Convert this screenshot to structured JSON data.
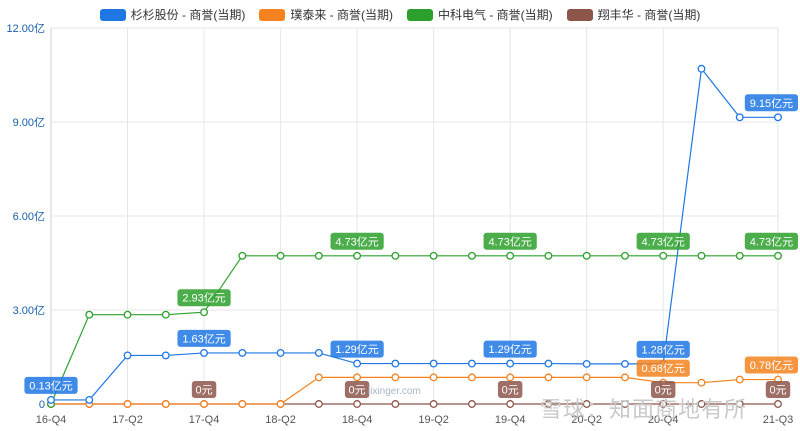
{
  "chart_data": {
    "type": "line",
    "categories": [
      "16-Q4",
      "17-Q1",
      "17-Q2",
      "17-Q3",
      "17-Q4",
      "18-Q1",
      "18-Q2",
      "18-Q3",
      "18-Q4",
      "19-Q1",
      "19-Q2",
      "19-Q3",
      "19-Q4",
      "20-Q1",
      "20-Q2",
      "20-Q3",
      "20-Q4",
      "21-Q1",
      "21-Q2",
      "21-Q3"
    ],
    "tick_labels": [
      "16-Q4",
      "17-Q2",
      "17-Q4",
      "18-Q2",
      "18-Q4",
      "19-Q2",
      "19-Q4",
      "20-Q2",
      "20-Q4",
      "21-Q3"
    ],
    "y_ticks": [
      "0",
      "3.00亿",
      "6.00亿",
      "9.00亿",
      "12.00亿"
    ],
    "ylim": [
      0,
      12
    ],
    "grid": true,
    "legend_position": "top-center",
    "series": [
      {
        "name": "杉杉股份 - 商誉(当期)",
        "color": "#1f77e4",
        "values": [
          0.13,
          0.13,
          1.55,
          1.55,
          1.63,
          1.63,
          1.63,
          1.63,
          1.29,
          1.29,
          1.29,
          1.29,
          1.29,
          1.29,
          1.28,
          1.28,
          1.28,
          10.7,
          9.15,
          9.15
        ],
        "labels": [
          {
            "i": 0,
            "text": "0.13亿元"
          },
          {
            "i": 4,
            "text": "1.63亿元"
          },
          {
            "i": 8,
            "text": "1.29亿元"
          },
          {
            "i": 12,
            "text": "1.29亿元"
          },
          {
            "i": 16,
            "text": "1.28亿元"
          },
          {
            "i": 19,
            "text": "9.15亿元"
          }
        ]
      },
      {
        "name": "璞泰来 - 商誉(当期)",
        "color": "#f5821f",
        "values": [
          0,
          0,
          0,
          0,
          0,
          0,
          0,
          0.85,
          0.85,
          0.85,
          0.85,
          0.85,
          0.85,
          0.85,
          0.85,
          0.85,
          0.68,
          0.68,
          0.78,
          0.78
        ],
        "labels": [
          {
            "i": 16,
            "text": "0.68亿元"
          },
          {
            "i": 19,
            "text": "0.78亿元"
          }
        ]
      },
      {
        "name": "中科电气 - 商誉(当期)",
        "color": "#2ca02c",
        "values": [
          0,
          2.85,
          2.85,
          2.85,
          2.93,
          4.73,
          4.73,
          4.73,
          4.73,
          4.73,
          4.73,
          4.73,
          4.73,
          4.73,
          4.73,
          4.73,
          4.73,
          4.73,
          4.73,
          4.73
        ],
        "labels": [
          {
            "i": 4,
            "text": "2.93亿元"
          },
          {
            "i": 8,
            "text": "4.73亿元"
          },
          {
            "i": 12,
            "text": "4.73亿元"
          },
          {
            "i": 16,
            "text": "4.73亿元"
          },
          {
            "i": 19,
            "text": "4.73亿元"
          }
        ]
      },
      {
        "name": "翔丰华 - 商誉(当期)",
        "color": "#8c564b",
        "values": [
          0,
          0,
          0,
          0,
          0,
          0,
          0,
          0,
          0,
          0,
          0,
          0,
          0,
          0,
          0,
          0,
          0,
          0,
          0,
          0
        ],
        "labels": [
          {
            "i": 4,
            "text": "0元"
          },
          {
            "i": 8,
            "text": "0元"
          },
          {
            "i": 12,
            "text": "0元"
          },
          {
            "i": 16,
            "text": "0元"
          },
          {
            "i": 19,
            "text": "0元"
          }
        ]
      }
    ]
  },
  "watermark": {
    "center_text": "lixinger.com",
    "right_text": "雪球：知面商地有所"
  }
}
